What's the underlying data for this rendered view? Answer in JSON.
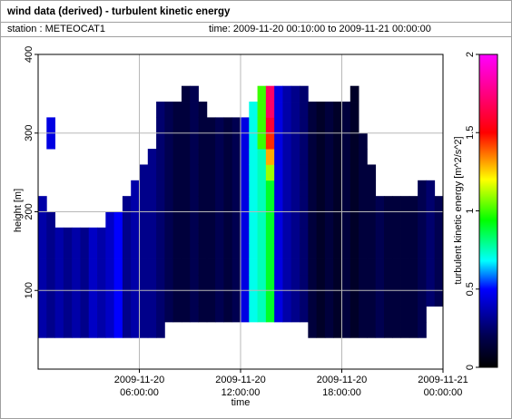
{
  "chart_data": {
    "type": "heatmap",
    "title": "wind data (derived) - turbulent kinetic energy",
    "station": "station : METEOCAT1",
    "time_range": "time: 2009-11-20 00:10:00 to 2009-11-21 00:00:00",
    "xlabel": "time",
    "ylabel": "height [m]",
    "xlim": [
      "2009-11-20 00:00:00",
      "2009-11-21 00:00:00"
    ],
    "xticks": [
      "2009-11-20 06:00:00",
      "2009-11-20 12:00:00",
      "2009-11-20 18:00:00",
      "2009-11-21 00:00:00"
    ],
    "ylim": [
      0,
      400
    ],
    "yticks": [
      100,
      200,
      300,
      400
    ],
    "grid": true,
    "x_edges": [
      "2009-11-20 00:00:00",
      "2009-11-20 00:30:00",
      "2009-11-20 01:00:00",
      "2009-11-20 01:30:00",
      "2009-11-20 02:00:00",
      "2009-11-20 02:30:00",
      "2009-11-20 03:00:00",
      "2009-11-20 03:30:00",
      "2009-11-20 04:00:00",
      "2009-11-20 04:30:00",
      "2009-11-20 05:00:00",
      "2009-11-20 05:30:00",
      "2009-11-20 06:00:00",
      "2009-11-20 06:30:00",
      "2009-11-20 07:00:00",
      "2009-11-20 07:30:00",
      "2009-11-20 08:00:00",
      "2009-11-20 08:30:00",
      "2009-11-20 09:00:00",
      "2009-11-20 09:30:00",
      "2009-11-20 10:00:00",
      "2009-11-20 10:30:00",
      "2009-11-20 11:00:00",
      "2009-11-20 11:30:00",
      "2009-11-20 12:00:00",
      "2009-11-20 12:30:00",
      "2009-11-20 13:00:00",
      "2009-11-20 13:30:00",
      "2009-11-20 14:00:00",
      "2009-11-20 14:30:00",
      "2009-11-20 15:00:00",
      "2009-11-20 15:30:00",
      "2009-11-20 16:00:00",
      "2009-11-20 16:30:00",
      "2009-11-20 17:00:00",
      "2009-11-20 17:30:00",
      "2009-11-20 18:00:00",
      "2009-11-20 18:30:00",
      "2009-11-20 19:00:00",
      "2009-11-20 19:30:00",
      "2009-11-20 20:00:00",
      "2009-11-20 20:30:00",
      "2009-11-20 21:00:00",
      "2009-11-20 21:30:00",
      "2009-11-20 22:00:00",
      "2009-11-20 22:30:00",
      "2009-11-20 23:00:00",
      "2009-11-20 23:30:00",
      "2009-11-21 00:00:00"
    ],
    "y_edges": [
      40,
      60,
      80,
      100,
      120,
      140,
      160,
      180,
      200,
      220,
      240,
      260,
      280,
      300,
      320,
      340,
      360
    ],
    "z": [
      [
        0.35,
        0.35,
        0.35,
        0.35,
        0.35,
        0.35,
        0.35,
        0.35,
        0.35,
        null,
        null,
        null,
        null,
        null,
        null,
        null
      ],
      [
        0.3,
        0.3,
        0.3,
        0.3,
        0.3,
        0.3,
        0.3,
        0.3,
        null,
        null,
        null,
        null,
        0.45,
        0.45,
        null,
        null
      ],
      [
        0.35,
        0.35,
        0.35,
        0.35,
        0.35,
        0.35,
        0.35,
        null,
        null,
        null,
        null,
        null,
        null,
        null,
        null,
        null
      ],
      [
        0.3,
        0.3,
        0.3,
        0.3,
        0.3,
        0.3,
        0.3,
        null,
        null,
        null,
        null,
        null,
        null,
        null,
        null,
        null
      ],
      [
        0.35,
        0.35,
        0.35,
        0.35,
        0.35,
        0.35,
        0.35,
        null,
        null,
        null,
        null,
        null,
        null,
        null,
        null,
        null
      ],
      [
        0.3,
        0.3,
        0.3,
        0.3,
        0.3,
        0.3,
        0.3,
        null,
        null,
        null,
        null,
        null,
        null,
        null,
        null,
        null
      ],
      [
        0.4,
        0.4,
        0.4,
        0.4,
        0.4,
        0.4,
        0.4,
        null,
        null,
        null,
        null,
        null,
        null,
        null,
        null,
        null
      ],
      [
        0.35,
        0.35,
        0.35,
        0.35,
        0.35,
        0.35,
        0.35,
        null,
        null,
        null,
        null,
        null,
        null,
        null,
        null,
        null
      ],
      [
        0.4,
        0.4,
        0.4,
        0.4,
        0.4,
        0.4,
        0.4,
        0.4,
        null,
        null,
        null,
        null,
        null,
        null,
        null,
        null
      ],
      [
        0.5,
        0.5,
        0.5,
        0.5,
        0.5,
        0.5,
        0.5,
        0.5,
        null,
        null,
        null,
        null,
        null,
        null,
        null,
        null
      ],
      [
        0.3,
        0.3,
        0.3,
        0.3,
        0.3,
        0.3,
        0.3,
        0.3,
        0.3,
        null,
        null,
        null,
        null,
        null,
        null,
        null
      ],
      [
        0.35,
        0.35,
        0.35,
        0.35,
        0.35,
        0.35,
        0.35,
        0.35,
        0.35,
        0.35,
        null,
        null,
        null,
        null,
        null,
        null
      ],
      [
        0.3,
        0.3,
        0.3,
        0.3,
        0.3,
        0.3,
        0.3,
        0.3,
        0.3,
        0.3,
        0.3,
        null,
        null,
        null,
        null,
        null
      ],
      [
        0.3,
        0.3,
        0.3,
        0.3,
        0.3,
        0.3,
        0.3,
        0.3,
        0.3,
        0.3,
        0.3,
        0.3,
        null,
        null,
        null,
        null
      ],
      [
        0.25,
        0.25,
        0.25,
        0.25,
        0.25,
        0.25,
        0.25,
        0.25,
        0.25,
        0.25,
        0.25,
        0.25,
        0.25,
        0.25,
        0.25,
        null
      ],
      [
        null,
        0.2,
        0.2,
        0.2,
        0.2,
        0.2,
        0.2,
        0.2,
        0.2,
        0.2,
        0.2,
        0.2,
        0.2,
        0.2,
        0.2,
        null
      ],
      [
        null,
        0.15,
        0.15,
        0.15,
        0.15,
        0.15,
        0.15,
        0.15,
        0.15,
        0.15,
        0.15,
        0.15,
        0.15,
        0.15,
        0.15,
        null
      ],
      [
        null,
        0.15,
        0.15,
        0.15,
        0.15,
        0.15,
        0.15,
        0.15,
        0.15,
        0.15,
        0.15,
        0.15,
        0.15,
        0.15,
        0.15,
        0.15
      ],
      [
        null,
        0.2,
        0.2,
        0.2,
        0.2,
        0.2,
        0.2,
        0.2,
        0.2,
        0.2,
        0.2,
        0.2,
        0.2,
        0.2,
        0.2,
        0.2
      ],
      [
        null,
        0.15,
        0.15,
        0.15,
        0.15,
        0.15,
        0.15,
        0.15,
        0.15,
        0.15,
        0.15,
        0.15,
        0.15,
        0.15,
        0.15,
        null
      ],
      [
        null,
        0.15,
        0.15,
        0.15,
        0.15,
        0.15,
        0.15,
        0.15,
        0.15,
        0.15,
        0.15,
        0.15,
        0.15,
        0.15,
        null,
        null
      ],
      [
        null,
        0.2,
        0.2,
        0.2,
        0.2,
        0.2,
        0.2,
        0.2,
        0.2,
        0.2,
        0.2,
        0.2,
        0.2,
        0.2,
        null,
        null
      ],
      [
        null,
        0.15,
        0.15,
        0.15,
        0.15,
        0.15,
        0.15,
        0.15,
        0.15,
        0.15,
        0.15,
        0.15,
        0.15,
        0.15,
        null,
        null
      ],
      [
        null,
        0.2,
        0.2,
        0.2,
        0.2,
        0.2,
        0.2,
        0.2,
        0.2,
        0.2,
        0.2,
        0.2,
        0.2,
        0.2,
        null,
        null
      ],
      [
        null,
        0.45,
        0.45,
        0.45,
        0.45,
        0.45,
        0.45,
        0.45,
        0.45,
        0.45,
        0.45,
        0.45,
        0.45,
        0.45,
        null,
        null
      ],
      [
        null,
        0.7,
        0.7,
        0.7,
        0.7,
        0.7,
        0.7,
        0.7,
        0.7,
        0.7,
        0.7,
        0.7,
        0.7,
        0.7,
        0.7,
        null
      ],
      [
        null,
        0.75,
        0.75,
        0.75,
        0.75,
        0.75,
        0.75,
        0.75,
        0.75,
        0.75,
        0.75,
        0.75,
        1.0,
        1.0,
        1.0,
        1.0
      ],
      [
        null,
        0.9,
        0.9,
        0.9,
        0.9,
        0.9,
        0.9,
        0.9,
        0.9,
        0.9,
        1.1,
        1.3,
        1.45,
        1.6,
        1.7,
        1.7
      ],
      [
        null,
        0.45,
        0.45,
        0.45,
        0.45,
        0.45,
        0.45,
        0.45,
        0.45,
        0.45,
        0.45,
        0.45,
        0.45,
        0.45,
        0.45,
        0.45
      ],
      [
        null,
        0.35,
        0.35,
        0.35,
        0.35,
        0.35,
        0.35,
        0.35,
        0.35,
        0.35,
        0.35,
        0.35,
        0.35,
        0.35,
        0.35,
        0.35
      ],
      [
        null,
        0.3,
        0.3,
        0.3,
        0.3,
        0.3,
        0.3,
        0.3,
        0.3,
        0.3,
        0.3,
        0.3,
        0.3,
        0.3,
        0.3,
        0.3
      ],
      [
        null,
        0.25,
        0.25,
        0.25,
        0.25,
        0.25,
        0.25,
        0.25,
        0.25,
        0.25,
        0.25,
        0.25,
        0.25,
        0.25,
        0.25,
        0.25
      ],
      [
        0.15,
        0.15,
        0.15,
        0.15,
        0.15,
        0.15,
        0.15,
        0.15,
        0.15,
        0.15,
        0.15,
        0.15,
        0.15,
        0.15,
        0.15,
        null
      ],
      [
        0.1,
        0.1,
        0.1,
        0.1,
        0.1,
        0.1,
        0.1,
        0.1,
        0.1,
        0.1,
        0.1,
        0.1,
        0.1,
        0.1,
        0.1,
        null
      ],
      [
        0.15,
        0.15,
        0.15,
        0.15,
        0.15,
        0.15,
        0.15,
        0.15,
        0.15,
        0.15,
        0.15,
        0.15,
        0.15,
        0.15,
        0.15,
        null
      ],
      [
        0.1,
        0.1,
        0.1,
        0.1,
        0.1,
        0.1,
        0.1,
        0.1,
        0.1,
        0.1,
        0.1,
        0.1,
        0.1,
        0.1,
        0.1,
        null
      ],
      [
        0.15,
        0.15,
        0.15,
        0.15,
        0.15,
        0.15,
        0.15,
        0.15,
        0.15,
        0.15,
        0.15,
        0.15,
        0.15,
        0.15,
        0.15,
        null
      ],
      [
        0.1,
        0.1,
        0.1,
        0.1,
        0.1,
        0.1,
        0.1,
        0.1,
        0.1,
        0.1,
        0.1,
        0.1,
        0.1,
        0.1,
        0.1,
        0.1
      ],
      [
        0.15,
        0.15,
        0.15,
        0.15,
        0.15,
        0.15,
        0.15,
        0.15,
        0.15,
        0.15,
        0.15,
        0.15,
        0.15,
        null,
        null,
        null
      ],
      [
        0.15,
        0.15,
        0.15,
        0.15,
        0.15,
        0.15,
        0.15,
        0.15,
        0.15,
        0.15,
        0.15,
        null,
        null,
        null,
        null,
        null
      ],
      [
        0.2,
        0.2,
        0.2,
        0.2,
        0.2,
        0.2,
        0.2,
        0.2,
        0.2,
        null,
        null,
        null,
        null,
        null,
        null,
        null
      ],
      [
        0.15,
        0.15,
        0.15,
        0.15,
        0.15,
        0.15,
        0.15,
        0.15,
        0.15,
        null,
        null,
        null,
        null,
        null,
        null,
        null
      ],
      [
        0.15,
        0.15,
        0.15,
        0.15,
        0.15,
        0.15,
        0.15,
        0.15,
        0.15,
        null,
        null,
        null,
        null,
        null,
        null,
        null
      ],
      [
        0.15,
        0.15,
        0.15,
        0.15,
        0.15,
        0.15,
        0.15,
        0.15,
        0.15,
        null,
        null,
        null,
        null,
        null,
        null,
        null
      ],
      [
        0.15,
        0.15,
        0.15,
        0.15,
        0.15,
        0.15,
        0.15,
        0.15,
        0.15,
        null,
        null,
        null,
        null,
        null,
        null,
        null
      ],
      [
        0.2,
        0.2,
        0.2,
        0.2,
        0.2,
        0.2,
        0.2,
        0.2,
        0.2,
        0.2,
        null,
        null,
        null,
        null,
        null,
        null
      ],
      [
        null,
        null,
        0.25,
        0.25,
        0.25,
        0.25,
        0.25,
        0.25,
        0.25,
        0.25,
        null,
        null,
        null,
        null,
        null,
        null
      ],
      [
        null,
        null,
        0.2,
        0.2,
        0.2,
        0.2,
        0.2,
        0.2,
        0.2,
        null,
        null,
        null,
        null,
        null,
        null,
        null
      ]
    ],
    "colorbar": {
      "label": "turbulent kinetic energy [m^2/s^2]",
      "lim": [
        0,
        2
      ],
      "ticks": [
        0,
        0.5,
        1,
        1.5,
        2
      ],
      "colorscale": [
        [
          0,
          "#000000"
        ],
        [
          0.1,
          "#000050"
        ],
        [
          0.25,
          "#0000ff"
        ],
        [
          0.34,
          "#00ffff"
        ],
        [
          0.47,
          "#00ff00"
        ],
        [
          0.6,
          "#ffff00"
        ],
        [
          0.75,
          "#ff0000"
        ],
        [
          1,
          "#ff00ff"
        ]
      ]
    }
  }
}
